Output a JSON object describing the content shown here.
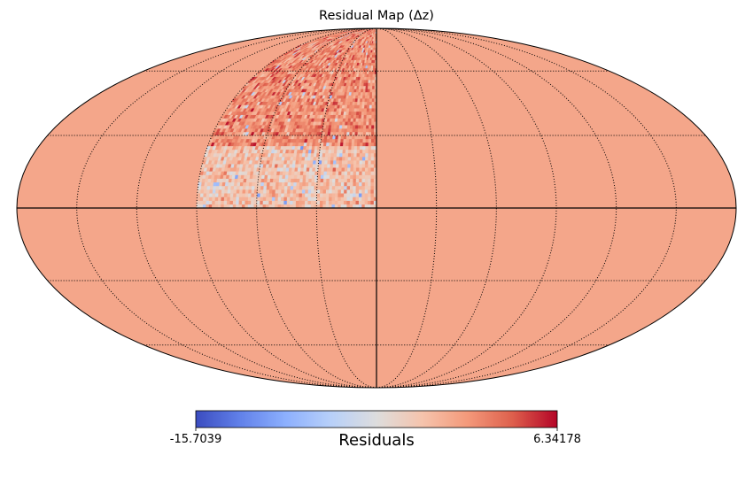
{
  "chart_data": {
    "type": "heatmap",
    "projection": "mollweide",
    "title": "Residual Map (Δz)",
    "colormap": "coolwarm",
    "colorbar": {
      "label": "Residuals",
      "min": -15.7039,
      "max": 6.34178,
      "min_label": "-15.7039",
      "max_label": "6.34178",
      "orientation": "horizontal",
      "placement": "bottom"
    },
    "fill_value": 0,
    "fill_color": "#f4a68a",
    "graticule": {
      "meridians_deg": [
        -150,
        -120,
        -90,
        -60,
        -30,
        0,
        30,
        60,
        90,
        120,
        150
      ],
      "parallels_deg": [
        -60,
        -30,
        0,
        30,
        60
      ],
      "style": "dotted",
      "solid_lines": [
        "equator",
        "central meridian"
      ]
    },
    "data_region": {
      "lon_range_deg": [
        0,
        90
      ],
      "lat_range_deg": [
        0,
        90
      ],
      "description": "pixelized residual values in the north-east quadrant"
    },
    "data_pixels": {
      "lat_step_deg": 1.5,
      "lon_step_deg": 1.5,
      "ranges": [
        {
          "lat_range": [
            0,
            25
          ],
          "mean": -2.0,
          "spread": 2.6
        },
        {
          "lat_range": [
            25,
            90
          ],
          "mean": 1.2,
          "spread": 2.4
        }
      ]
    }
  }
}
